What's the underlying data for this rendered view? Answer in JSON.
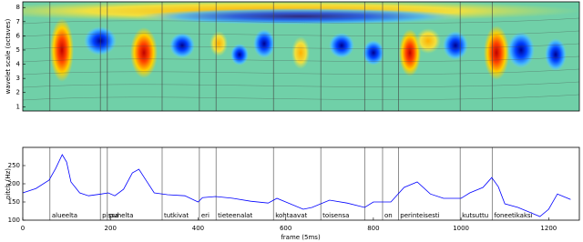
{
  "chart_data": [
    {
      "type": "heatmap",
      "ylabel": "wavelet scale (octaves)",
      "ylim": [
        0.7,
        8.4
      ],
      "yticks": [
        1,
        2,
        3,
        4,
        5,
        6,
        7,
        8
      ]
    },
    {
      "type": "line",
      "xlabel": "frame (5ms)",
      "ylabel": "pitch (Hz)",
      "xlim": [
        0,
        1270
      ],
      "ylim": [
        100,
        300
      ],
      "xticks": [
        0,
        200,
        400,
        600,
        800,
        1000,
        1200
      ],
      "yticks": [
        100,
        150,
        200,
        250
      ],
      "x": [
        0,
        30,
        60,
        75,
        90,
        100,
        110,
        130,
        150,
        180,
        195,
        210,
        230,
        250,
        265,
        280,
        300,
        330,
        370,
        400,
        410,
        440,
        480,
        520,
        560,
        580,
        600,
        640,
        660,
        700,
        740,
        780,
        800,
        840,
        870,
        900,
        930,
        960,
        1000,
        1020,
        1050,
        1070,
        1085,
        1100,
        1130,
        1160,
        1180,
        1200,
        1220,
        1250
      ],
      "series": [
        {
          "color": "#0000ff",
          "values": [
            175,
            187,
            210,
            242,
            280,
            260,
            205,
            175,
            167,
            172,
            175,
            167,
            185,
            230,
            240,
            212,
            175,
            170,
            167,
            150,
            162,
            165,
            160,
            152,
            147,
            160,
            150,
            130,
            135,
            155,
            147,
            135,
            150,
            150,
            190,
            205,
            172,
            160,
            160,
            175,
            190,
            217,
            192,
            145,
            135,
            120,
            110,
            130,
            172,
            157
          ]
        }
      ],
      "word_starts": [
        62,
        177,
        193,
        318,
        403,
        441,
        572,
        680,
        780,
        821,
        857,
        998,
        1071
      ],
      "words": [
        "alueelta",
        "pissa",
        "puhelta",
        "tutkivat",
        "eri",
        "tieteenalat",
        "kohtaavat",
        "toisensa",
        null,
        "on",
        "perinteisesti",
        "kutsuttu",
        "foneetikaksi"
      ]
    }
  ]
}
